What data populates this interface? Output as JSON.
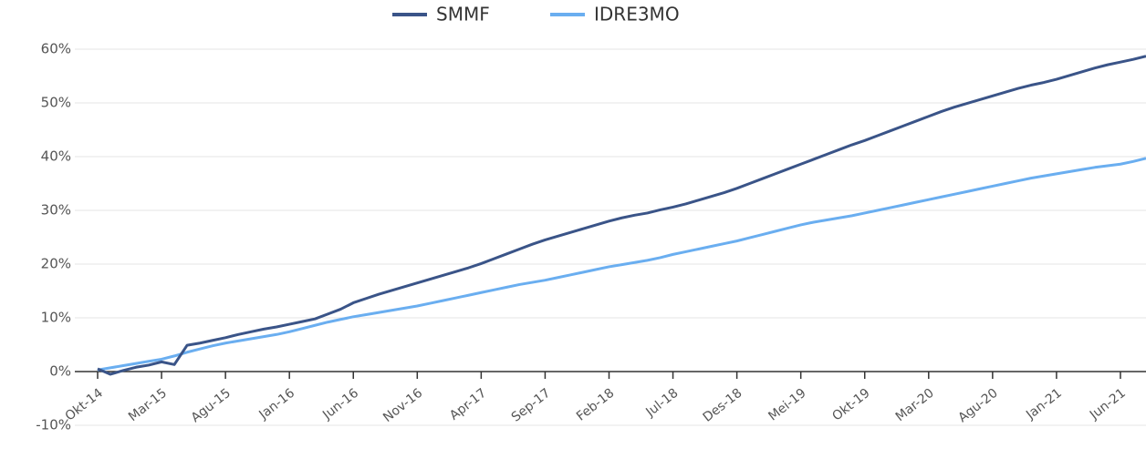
{
  "chart_data": {
    "type": "line",
    "categories": [
      "Okt-14",
      null,
      null,
      null,
      null,
      "Mar-15",
      null,
      null,
      null,
      null,
      "Agu-15",
      null,
      null,
      null,
      null,
      "Jan-16",
      null,
      null,
      null,
      null,
      "Jun-16",
      null,
      null,
      null,
      null,
      "Nov-16",
      null,
      null,
      null,
      null,
      "Apr-17",
      null,
      null,
      null,
      null,
      "Sep-17",
      null,
      null,
      null,
      null,
      "Feb-18",
      null,
      null,
      null,
      null,
      "Jul-18",
      null,
      null,
      null,
      null,
      "Des-18",
      null,
      null,
      null,
      null,
      "Mei-19",
      null,
      null,
      null,
      null,
      "Okt-19",
      null,
      null,
      null,
      null,
      "Mar-20",
      null,
      null,
      null,
      null,
      "Agu-20",
      null,
      null,
      null,
      null,
      "Jan-21",
      null,
      null,
      null,
      null,
      "Jun-21",
      null,
      null
    ],
    "series": [
      {
        "name": "SMMF",
        "color": "#3a5488",
        "values": [
          0.5,
          -0.5,
          0.2,
          0.8,
          1.2,
          1.8,
          1.3,
          4.9,
          5.3,
          5.8,
          6.3,
          6.9,
          7.4,
          7.9,
          8.3,
          8.8,
          9.3,
          9.8,
          10.7,
          11.6,
          12.8,
          13.6,
          14.4,
          15.1,
          15.8,
          16.5,
          17.2,
          17.9,
          18.6,
          19.3,
          20.1,
          21.0,
          21.9,
          22.8,
          23.7,
          24.5,
          25.2,
          25.9,
          26.6,
          27.3,
          28.0,
          28.6,
          29.1,
          29.5,
          30.1,
          30.6,
          31.2,
          31.9,
          32.6,
          33.3,
          34.1,
          35.0,
          35.9,
          36.8,
          37.7,
          38.6,
          39.5,
          40.4,
          41.3,
          42.2,
          43.0,
          43.9,
          44.8,
          45.7,
          46.6,
          47.5,
          48.4,
          49.2,
          49.9,
          50.6,
          51.3,
          52.0,
          52.7,
          53.3,
          53.8,
          54.4,
          55.1,
          55.8,
          56.5,
          57.1,
          57.6,
          58.1,
          58.7
        ]
      },
      {
        "name": "IDRE3MO",
        "color": "#6aaef0",
        "values": [
          0.3,
          0.7,
          1.1,
          1.5,
          1.9,
          2.3,
          2.9,
          3.6,
          4.2,
          4.8,
          5.3,
          5.7,
          6.1,
          6.5,
          6.9,
          7.4,
          8.0,
          8.6,
          9.2,
          9.7,
          10.2,
          10.6,
          11.0,
          11.4,
          11.8,
          12.2,
          12.7,
          13.2,
          13.7,
          14.2,
          14.7,
          15.2,
          15.7,
          16.2,
          16.6,
          17.0,
          17.5,
          18.0,
          18.5,
          19.0,
          19.5,
          19.9,
          20.3,
          20.7,
          21.2,
          21.8,
          22.3,
          22.8,
          23.3,
          23.8,
          24.3,
          24.9,
          25.5,
          26.1,
          26.7,
          27.3,
          27.8,
          28.2,
          28.6,
          29.0,
          29.5,
          30.0,
          30.5,
          31.0,
          31.5,
          32.0,
          32.5,
          33.0,
          33.5,
          34.0,
          34.5,
          35.0,
          35.5,
          36.0,
          36.4,
          36.8,
          37.2,
          37.6,
          38.0,
          38.3,
          38.6,
          39.1,
          39.7
        ]
      }
    ],
    "ylim": [
      -10,
      60
    ],
    "yticks": [
      {
        "value": -10,
        "label": "-10%"
      },
      {
        "value": 0,
        "label": "0%"
      },
      {
        "value": 10,
        "label": "10%"
      },
      {
        "value": 20,
        "label": "20%"
      },
      {
        "value": 30,
        "label": "30%"
      },
      {
        "value": 40,
        "label": "40%"
      },
      {
        "value": 50,
        "label": "50%"
      },
      {
        "value": 60,
        "label": "60%"
      }
    ],
    "grid": true,
    "legend": "top"
  }
}
